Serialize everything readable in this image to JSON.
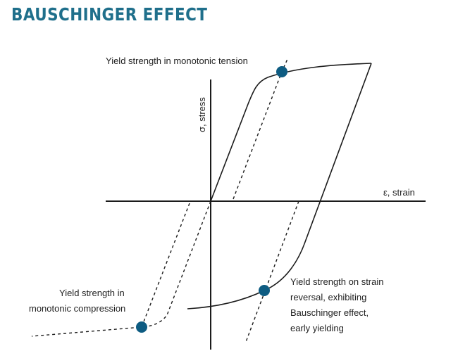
{
  "title": "BAUSCHINGER EFFECT",
  "colors": {
    "title": "#1f6f8b",
    "curve": "#1b1b1b",
    "marker": "#0e5c82",
    "text": "#1f1f1f"
  },
  "axes": {
    "x_label": "ε, strain",
    "y_label": "σ, stress"
  },
  "annotations": {
    "tension": "Yield strength in monotonic tension",
    "compression": [
      "Yield strength in",
      "monotonic compression"
    ],
    "reversal": [
      "Yield strength on strain",
      "reversal, exhibiting",
      "Bauschinger effect,",
      "early yielding"
    ]
  }
}
